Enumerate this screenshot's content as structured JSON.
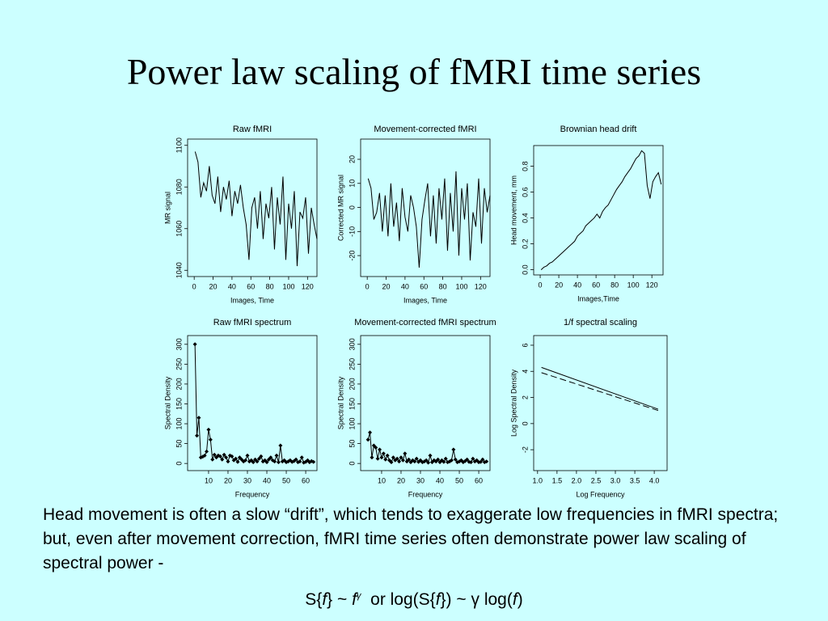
{
  "title": "Power law scaling of fMRI time series",
  "body": "Head movement is often a slow “drift”, which tends to exaggerate low frequencies in fMRI spectra; but, even after movement correction, fMRI time series often demonstrate power law scaling of spectral power -",
  "formula": [
    "S{",
    "f",
    "} ~ ",
    "f",
    "γ",
    "  or log(S{",
    "f",
    "}) ~ ",
    "γ",
    " log(",
    "f",
    ")"
  ],
  "chart_data": [
    {
      "type": "line",
      "title": "Raw fMRI",
      "xlabel": "Images, Time",
      "ylabel": "MR signal",
      "x": [
        1,
        4,
        7,
        10,
        13,
        16,
        19,
        22,
        25,
        28,
        31,
        34,
        37,
        40,
        43,
        46,
        49,
        52,
        55,
        58,
        61,
        64,
        67,
        70,
        73,
        76,
        79,
        82,
        85,
        88,
        91,
        94,
        97,
        100,
        103,
        106,
        109,
        112,
        115,
        118,
        121,
        124,
        127,
        130
      ],
      "series": [
        {
          "color": "#000000",
          "values": [
            1097,
            1092,
            1075,
            1082,
            1078,
            1090,
            1076,
            1072,
            1085,
            1068,
            1080,
            1074,
            1083,
            1066,
            1078,
            1072,
            1081,
            1070,
            1062,
            1045,
            1070,
            1075,
            1060,
            1078,
            1055,
            1072,
            1065,
            1080,
            1050,
            1075,
            1062,
            1085,
            1045,
            1072,
            1060,
            1078,
            1042,
            1068,
            1065,
            1075,
            1048,
            1070,
            1062,
            1055
          ]
        }
      ],
      "xlim": [
        -7,
        130
      ],
      "ylim": [
        1037,
        1103
      ],
      "xticks": [
        0,
        20,
        40,
        60,
        80,
        100,
        120
      ],
      "yticks": [
        1040,
        1060,
        1080,
        1100
      ]
    },
    {
      "type": "line",
      "title": "Movement-corrected fMRI",
      "xlabel": "Images, Time",
      "ylabel": "Corrected MR signal",
      "x": [
        1,
        4,
        7,
        10,
        13,
        16,
        19,
        22,
        25,
        28,
        31,
        34,
        37,
        40,
        43,
        46,
        49,
        52,
        55,
        58,
        61,
        64,
        67,
        70,
        73,
        76,
        79,
        82,
        85,
        88,
        91,
        94,
        97,
        100,
        103,
        106,
        109,
        112,
        115,
        118,
        121,
        124,
        127,
        130
      ],
      "series": [
        {
          "color": "#000000",
          "values": [
            12,
            8,
            -5,
            -2,
            6,
            -10,
            5,
            -12,
            10,
            -8,
            2,
            -14,
            8,
            -4,
            -10,
            5,
            0,
            -8,
            -25,
            -5,
            3,
            10,
            -12,
            5,
            -15,
            8,
            -5,
            12,
            -18,
            6,
            -10,
            15,
            -20,
            8,
            -5,
            10,
            -22,
            -2,
            -8,
            12,
            -15,
            8,
            -2,
            5
          ]
        }
      ],
      "xlim": [
        -7,
        130
      ],
      "ylim": [
        -28.7,
        28.4
      ],
      "xticks": [
        0,
        20,
        40,
        60,
        80,
        100,
        120
      ],
      "yticks": [
        -20,
        -10,
        0,
        10,
        20
      ]
    },
    {
      "type": "line",
      "title": "Brownian head drift",
      "xlabel": "Images,Time",
      "ylabel": "Head movement, mm",
      "x": [
        1,
        4,
        7,
        10,
        13,
        16,
        19,
        22,
        25,
        28,
        31,
        34,
        37,
        40,
        43,
        46,
        49,
        52,
        55,
        58,
        61,
        64,
        67,
        70,
        73,
        76,
        79,
        82,
        85,
        88,
        91,
        94,
        97,
        100,
        103,
        106,
        109,
        112,
        115,
        118,
        121,
        124,
        127,
        130
      ],
      "series": [
        {
          "color": "#000000",
          "values": [
            0.0,
            0.02,
            0.03,
            0.05,
            0.06,
            0.08,
            0.1,
            0.12,
            0.14,
            0.16,
            0.18,
            0.2,
            0.22,
            0.26,
            0.28,
            0.3,
            0.34,
            0.36,
            0.38,
            0.4,
            0.43,
            0.4,
            0.45,
            0.48,
            0.5,
            0.54,
            0.58,
            0.62,
            0.65,
            0.68,
            0.72,
            0.75,
            0.78,
            0.82,
            0.86,
            0.88,
            0.92,
            0.9,
            0.65,
            0.55,
            0.68,
            0.72,
            0.75,
            0.66
          ]
        }
      ],
      "xlim": [
        -7,
        132
      ],
      "ylim": [
        -0.04,
        0.96
      ],
      "xticks": [
        0,
        20,
        40,
        60,
        80,
        100,
        120
      ],
      "yticks": [
        {
          "value": 0,
          "label": "0.0"
        },
        0.2,
        0.4,
        0.6,
        0.8
      ]
    },
    {
      "type": "line",
      "markers": true,
      "title": "Raw fMRI spectrum",
      "xlabel": "Frequency",
      "ylabel": "Spectral Density",
      "x": [
        3,
        4,
        5,
        6,
        7,
        8,
        9,
        10,
        11,
        12,
        13,
        14,
        15,
        16,
        17,
        18,
        19,
        20,
        21,
        22,
        23,
        24,
        25,
        26,
        27,
        28,
        29,
        30,
        31,
        32,
        33,
        34,
        35,
        36,
        37,
        38,
        39,
        40,
        41,
        42,
        43,
        44,
        45,
        46,
        47,
        48,
        49,
        50,
        51,
        52,
        53,
        54,
        55,
        56,
        57,
        58,
        59,
        60,
        61,
        62,
        63,
        64
      ],
      "series": [
        {
          "color": "#000000",
          "values": [
            300,
            70,
            115,
            15,
            17,
            20,
            30,
            85,
            60,
            10,
            22,
            15,
            20,
            18,
            10,
            22,
            15,
            5,
            20,
            18,
            8,
            12,
            4,
            15,
            10,
            5,
            8,
            20,
            5,
            8,
            3,
            10,
            5,
            12,
            18,
            5,
            8,
            3,
            10,
            15,
            8,
            5,
            20,
            3,
            45,
            5,
            8,
            3,
            5,
            8,
            4,
            6,
            10,
            3,
            5,
            15,
            2,
            4,
            8,
            3,
            6,
            4
          ]
        }
      ],
      "xlim": [
        -0.8,
        65.8
      ],
      "ylim": [
        -18,
        322
      ],
      "xticks": [
        10,
        20,
        30,
        40,
        50,
        60
      ],
      "yticks": [
        0,
        50,
        100,
        150,
        200,
        250,
        300
      ]
    },
    {
      "type": "line",
      "markers": true,
      "title": "Movement-corrected fMRI spectrum",
      "xlabel": "Frequency",
      "ylabel": "Spectral Density",
      "x": [
        3,
        4,
        5,
        6,
        7,
        8,
        9,
        10,
        11,
        12,
        13,
        14,
        15,
        16,
        17,
        18,
        19,
        20,
        21,
        22,
        23,
        24,
        25,
        26,
        27,
        28,
        29,
        30,
        31,
        32,
        33,
        34,
        35,
        36,
        37,
        38,
        39,
        40,
        41,
        42,
        43,
        44,
        45,
        46,
        47,
        48,
        49,
        50,
        51,
        52,
        53,
        54,
        55,
        56,
        57,
        58,
        59,
        60,
        61,
        62,
        63,
        64
      ],
      "series": [
        {
          "color": "#000000",
          "values": [
            60,
            78,
            15,
            45,
            40,
            12,
            35,
            15,
            25,
            10,
            20,
            8,
            3,
            15,
            8,
            12,
            5,
            15,
            8,
            25,
            5,
            10,
            3,
            8,
            5,
            12,
            4,
            8,
            3,
            5,
            8,
            2,
            20,
            3,
            8,
            5,
            10,
            3,
            8,
            4,
            12,
            3,
            5,
            8,
            35,
            10,
            3,
            5,
            8,
            3,
            6,
            10,
            4,
            3,
            12,
            5,
            8,
            3,
            4,
            10,
            3,
            5
          ]
        }
      ],
      "xlim": [
        -0.8,
        65.8
      ],
      "ylim": [
        -18,
        322
      ],
      "xticks": [
        10,
        20,
        30,
        40,
        50,
        60
      ],
      "yticks": [
        0,
        50,
        100,
        150,
        200,
        250,
        300
      ]
    },
    {
      "type": "line",
      "title": "1/f spectral scaling",
      "xlabel": "Log Frequency",
      "ylabel": "Log Spectral Density",
      "x": [
        1.1,
        4.1
      ],
      "series": [
        {
          "color": "#000000",
          "values": [
            4.3,
            1.1
          ]
        },
        {
          "color": "#000000",
          "dash": true,
          "values": [
            3.9,
            1.0
          ]
        }
      ],
      "xlim": [
        0.9,
        4.33
      ],
      "ylim": [
        -3.6,
        6.74
      ],
      "xticks": [
        {
          "value": 1,
          "label": "1.0"
        },
        1.5,
        {
          "value": 2,
          "label": "2.0"
        },
        2.5,
        {
          "value": 3,
          "label": "3.0"
        },
        3.5,
        {
          "value": 4,
          "label": "4.0"
        }
      ],
      "yticks": [
        -2,
        0,
        2,
        4,
        6
      ]
    }
  ]
}
